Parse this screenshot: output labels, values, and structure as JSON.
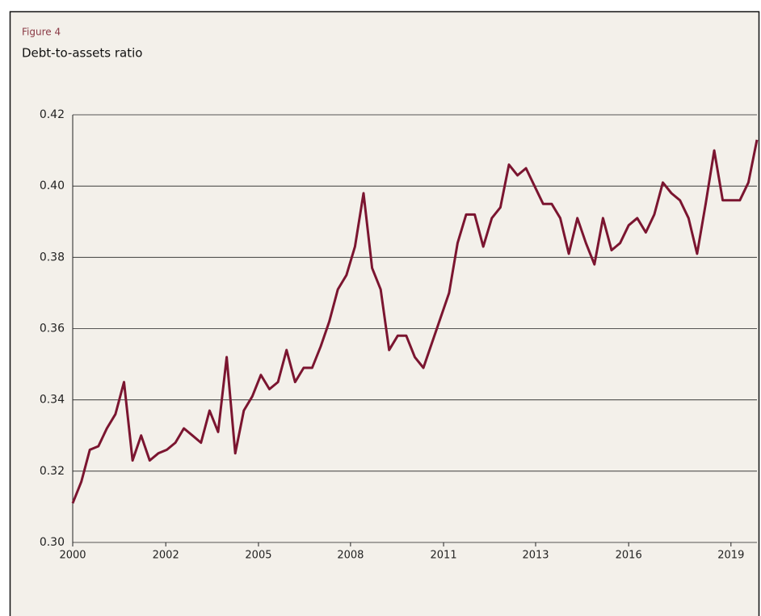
{
  "chart_data": {
    "type": "line",
    "subtitle": "Figure 4",
    "title": "Debt-to-assets ratio",
    "x": [
      2000,
      2000.25,
      2000.5,
      2000.75,
      2001,
      2001.25,
      2001.5,
      2001.75,
      2002,
      2002.25,
      2002.5,
      2002.75,
      2003,
      2003.25,
      2003.5,
      2003.75,
      2004,
      2004.25,
      2004.5,
      2004.75,
      2005,
      2005.25,
      2005.5,
      2005.75,
      2006,
      2006.25,
      2006.5,
      2006.75,
      2007,
      2007.25,
      2007.5,
      2007.75,
      2008,
      2008.25,
      2008.5,
      2008.75,
      2009,
      2009.25,
      2009.5,
      2009.75,
      2010,
      2010.25,
      2010.5,
      2010.75,
      2011,
      2011.25,
      2011.5,
      2011.75,
      2012,
      2012.25,
      2012.5,
      2012.75,
      2013,
      2013.25,
      2013.5,
      2013.75,
      2014,
      2014.25,
      2014.5,
      2014.75,
      2015,
      2015.25,
      2015.5,
      2015.75,
      2016,
      2016.25,
      2016.5,
      2016.75,
      2017,
      2017.25,
      2017.5,
      2017.75,
      2018,
      2018.25,
      2018.5,
      2018.75,
      2019,
      2019.25,
      2019.5,
      2019.75,
      2020
    ],
    "series": [
      {
        "name": "Debt-to-assets ratio",
        "color": "#7b1530",
        "values": [
          0.311,
          0.317,
          0.326,
          0.327,
          0.332,
          0.336,
          0.345,
          0.323,
          0.33,
          0.323,
          0.325,
          0.326,
          0.328,
          0.332,
          0.33,
          0.328,
          0.337,
          0.331,
          0.352,
          0.325,
          0.337,
          0.341,
          0.347,
          0.343,
          0.345,
          0.354,
          0.345,
          0.349,
          0.349,
          0.355,
          0.362,
          0.371,
          0.375,
          0.383,
          0.398,
          0.377,
          0.371,
          0.354,
          0.358,
          0.358,
          0.352,
          0.349,
          0.356,
          0.363,
          0.37,
          0.384,
          0.392,
          0.392,
          0.383,
          0.391,
          0.394,
          0.406,
          0.403,
          0.405,
          0.4,
          0.395,
          0.395,
          0.391,
          0.381,
          0.391,
          0.384,
          0.378,
          0.391,
          0.382,
          0.384,
          0.389,
          0.391,
          0.387,
          0.392,
          0.401,
          0.398,
          0.396,
          0.391,
          0.381,
          0.395,
          0.41,
          0.396,
          0.396,
          0.396,
          0.401,
          0.413
        ]
      }
    ],
    "xlim": [
      2000,
      2020
    ],
    "xticks": [
      2000,
      {
        "value": 2002.72,
        "label": "2002"
      },
      {
        "value": 2005.43,
        "label": "2005"
      },
      {
        "value": 2008.12,
        "label": "2008"
      },
      {
        "value": 2010.84,
        "label": "2011"
      },
      {
        "value": 2013.53,
        "label": "2013"
      },
      {
        "value": 2016.25,
        "label": "2016"
      },
      {
        "value": 2019.24,
        "label": "2019"
      }
    ],
    "ylim": [
      0.3,
      0.42
    ],
    "yticks": [
      {
        "value": 0.3,
        "label": "0.30"
      },
      {
        "value": 0.32,
        "label": "0.32"
      },
      {
        "value": 0.34,
        "label": "0.34"
      },
      {
        "value": 0.36,
        "label": "0.36"
      },
      {
        "value": 0.38,
        "label": "0.38"
      },
      {
        "value": 0.4,
        "label": "0.40"
      },
      {
        "value": 0.42,
        "label": "0.42"
      }
    ],
    "grid": true
  }
}
